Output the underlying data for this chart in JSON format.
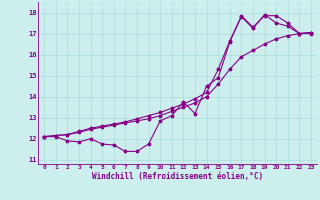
{
  "xlabel": "Windchill (Refroidissement éolien,°C)",
  "bg_color": "#cceeed",
  "line_color": "#880088",
  "grid_color": "#aadddd",
  "xlim": [
    -0.5,
    23.5
  ],
  "ylim": [
    10.8,
    18.5
  ],
  "yticks": [
    11,
    12,
    13,
    14,
    15,
    16,
    17,
    18
  ],
  "xticks": [
    0,
    1,
    2,
    3,
    4,
    5,
    6,
    7,
    8,
    9,
    10,
    11,
    12,
    13,
    14,
    15,
    16,
    17,
    18,
    19,
    20,
    21,
    22,
    23
  ],
  "series1_x": [
    0,
    1,
    2,
    3,
    4,
    5,
    6,
    7,
    8,
    9,
    10,
    11,
    12,
    13,
    14,
    15,
    16,
    17,
    18,
    19,
    20,
    21,
    22,
    23
  ],
  "series1_y": [
    12.1,
    12.1,
    11.9,
    11.85,
    12.0,
    11.75,
    11.7,
    11.4,
    11.4,
    11.75,
    12.85,
    13.1,
    13.75,
    13.2,
    14.5,
    14.9,
    16.6,
    17.85,
    17.3,
    17.85,
    17.85,
    17.5,
    17.0,
    17.0
  ],
  "series2_x": [
    0,
    1,
    2,
    3,
    4,
    5,
    6,
    7,
    8,
    9,
    10,
    11,
    12,
    13,
    14,
    15,
    16,
    17,
    18,
    19,
    20,
    21,
    22,
    23
  ],
  "series2_y": [
    12.1,
    12.15,
    12.2,
    12.3,
    12.45,
    12.55,
    12.65,
    12.75,
    12.85,
    12.95,
    13.1,
    13.3,
    13.5,
    13.7,
    14.0,
    14.6,
    15.3,
    15.9,
    16.2,
    16.5,
    16.75,
    16.9,
    17.0,
    17.05
  ],
  "series3_x": [
    0,
    1,
    2,
    3,
    4,
    5,
    6,
    7,
    8,
    9,
    10,
    11,
    12,
    13,
    14,
    15,
    16,
    17,
    18,
    19,
    20,
    21,
    22,
    23
  ],
  "series3_y": [
    12.1,
    12.15,
    12.2,
    12.35,
    12.5,
    12.6,
    12.7,
    12.8,
    12.95,
    13.1,
    13.25,
    13.45,
    13.65,
    13.9,
    14.2,
    15.3,
    16.65,
    17.8,
    17.25,
    17.9,
    17.5,
    17.35,
    17.0,
    17.05
  ]
}
